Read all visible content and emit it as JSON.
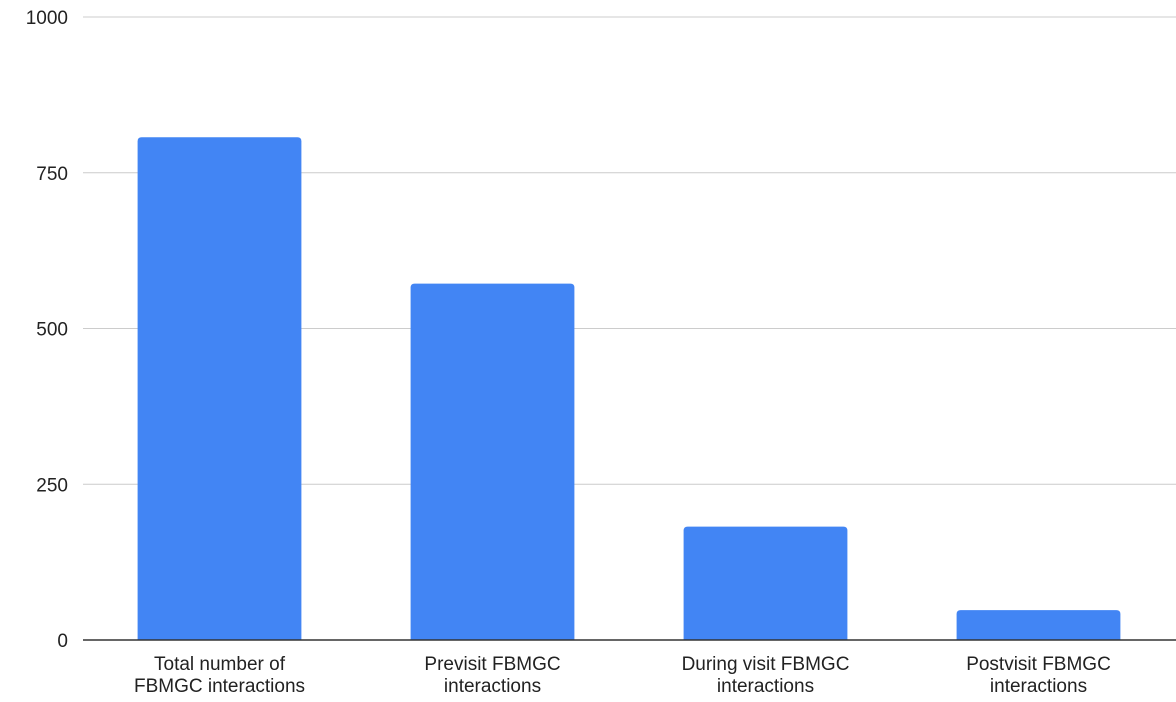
{
  "chart_data": {
    "type": "bar",
    "categories": [
      [
        "Total number of",
        "FBMGC interactions"
      ],
      [
        "Previsit FBMGC",
        "interactions"
      ],
      [
        "During visit FBMGC",
        "interactions"
      ],
      [
        "Postvisit FBMGC",
        "interactions"
      ]
    ],
    "values": [
      807,
      572,
      182,
      48
    ],
    "title": "",
    "xlabel": "",
    "ylabel": "",
    "ylim": [
      0,
      1000
    ],
    "yticks": [
      0,
      250,
      500,
      750,
      1000
    ],
    "ytick_labels": [
      "0",
      "250",
      "500",
      "750",
      "1000"
    ],
    "grid": true,
    "legend": "none",
    "bar_color": "#4285f4"
  }
}
